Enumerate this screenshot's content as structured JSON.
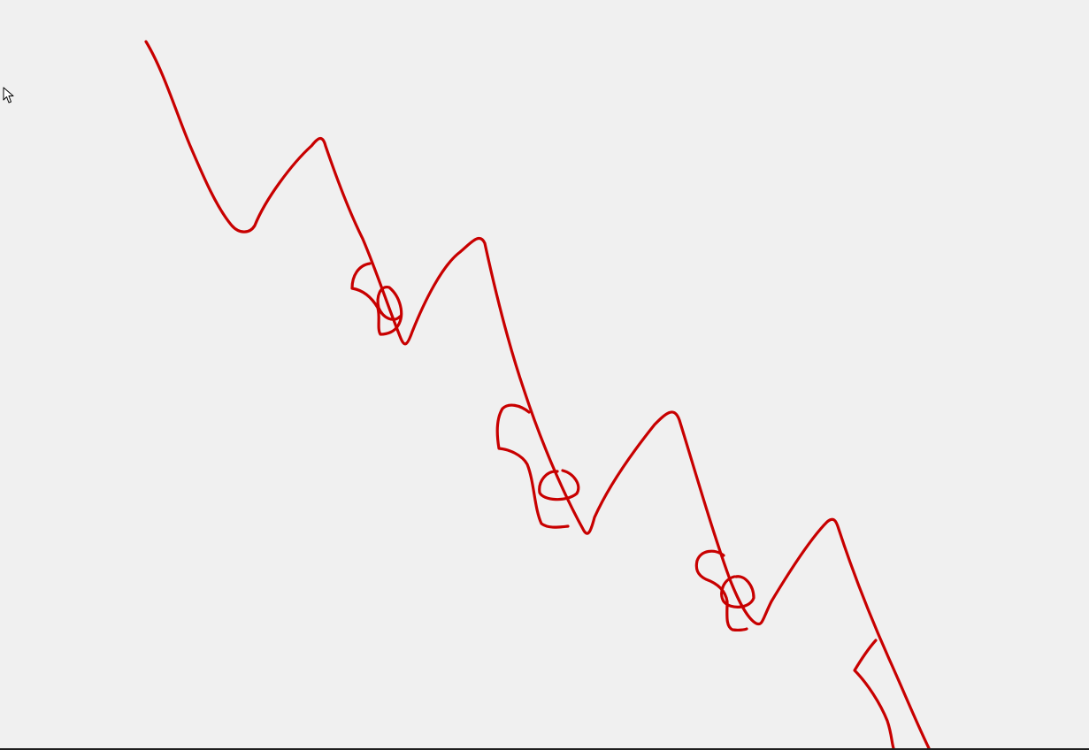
{
  "canvas": {
    "background": "#f0f0f0",
    "ink_color": "#c80000",
    "tool_icon": "arrow-cursor-icon"
  }
}
